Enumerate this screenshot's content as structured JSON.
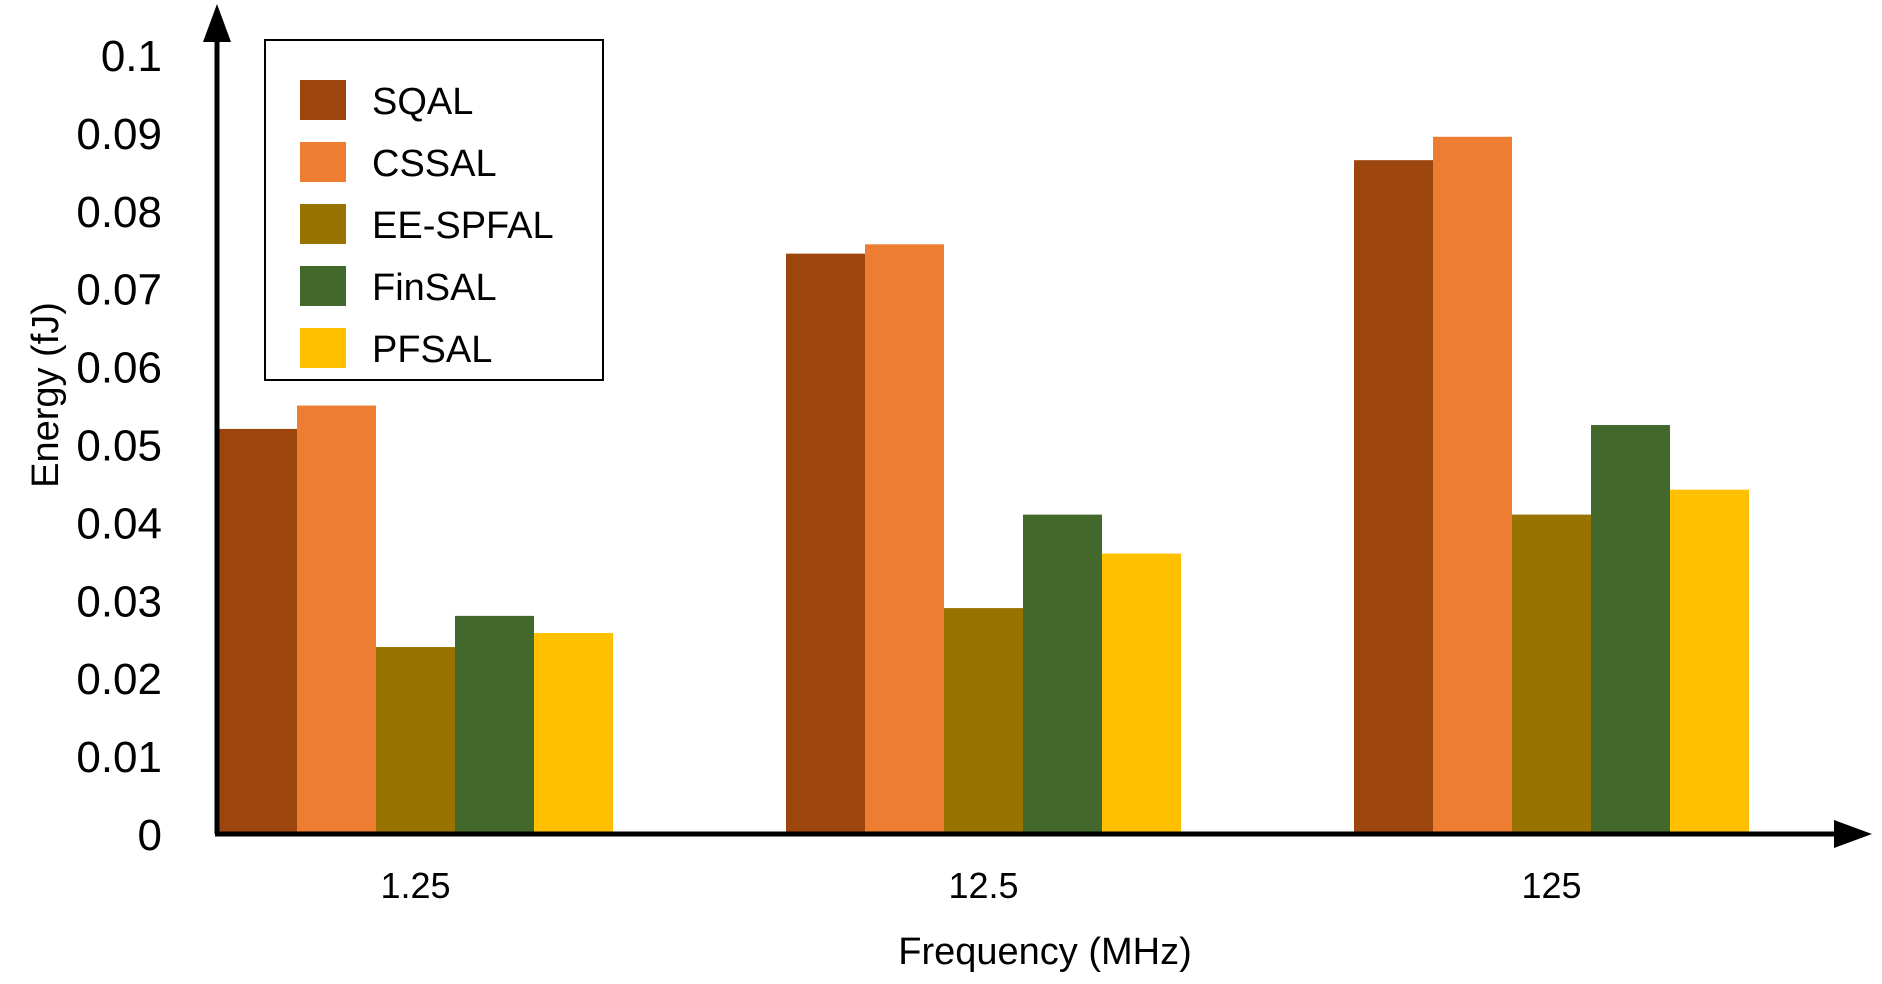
{
  "chart_data": {
    "type": "bar",
    "title": "",
    "xlabel": "Frequency (MHz)",
    "ylabel": "Energy (fJ)",
    "ylim": [
      0,
      0.1
    ],
    "yticks": [
      "0",
      "0.01",
      "0.02",
      "0.03",
      "0.04",
      "0.05",
      "0.06",
      "0.07",
      "0.08",
      "0.09",
      "0.1"
    ],
    "categories": [
      "1.25",
      "12.5",
      "125"
    ],
    "legend_position": "top-left",
    "grid": false,
    "series": [
      {
        "name": "SQAL",
        "color": "#9C460E",
        "values": [
          0.052,
          0.0745,
          0.0865
        ]
      },
      {
        "name": "CSSAL",
        "color": "#ED7D31",
        "values": [
          0.055,
          0.0757,
          0.0895
        ]
      },
      {
        "name": "EE-SPFAL",
        "color": "#997300",
        "values": [
          0.024,
          0.029,
          0.041
        ]
      },
      {
        "name": "FinSAL",
        "color": "#43682B",
        "values": [
          0.028,
          0.041,
          0.0525
        ]
      },
      {
        "name": "PFSAL",
        "color": "#FFC000",
        "values": [
          0.0258,
          0.036,
          0.0442
        ]
      }
    ]
  }
}
